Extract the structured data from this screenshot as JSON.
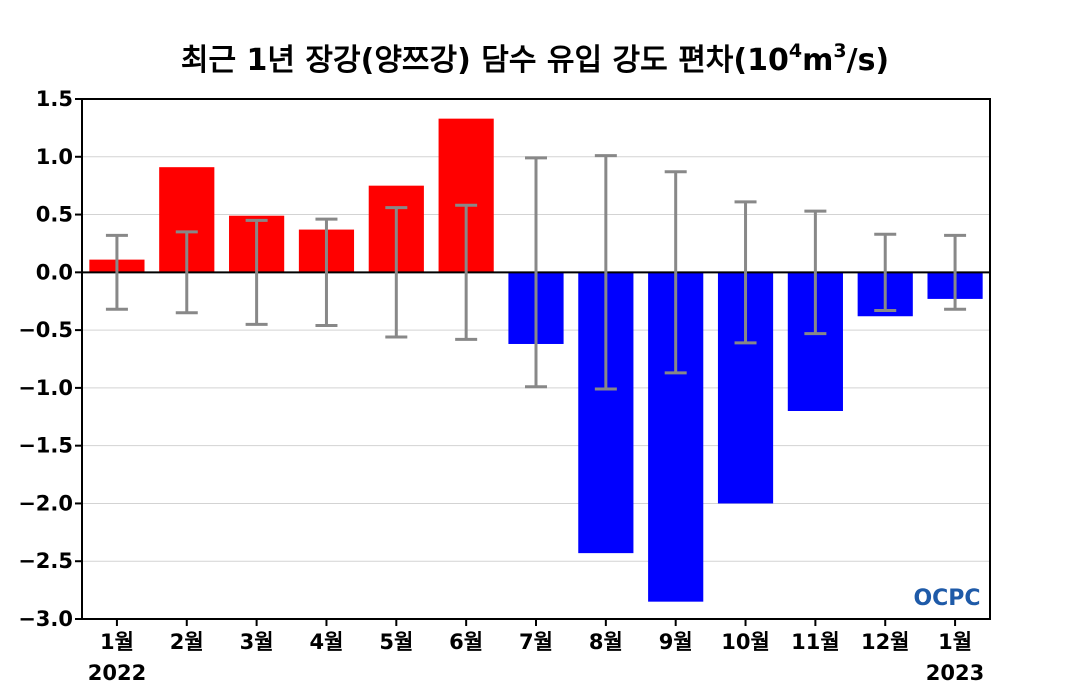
{
  "chart_data": {
    "type": "bar",
    "title": "최근 1년 장강(양쯔강) 담수 유입 강도 편차(10⁴m³/s)",
    "title_parts": {
      "main": "최근 1년 장강(양쯔강) 담수 유입 강도 편차(10",
      "exp1": "4",
      "mid": "m",
      "exp2": "3",
      "tail": "/s)"
    },
    "categories": [
      "1월",
      "2월",
      "3월",
      "4월",
      "5월",
      "6월",
      "7월",
      "8월",
      "9월",
      "10월",
      "11월",
      "12월",
      "1월"
    ],
    "year_labels": {
      "first": "2022",
      "last": "2023"
    },
    "series": [
      {
        "values": [
          0.11,
          0.91,
          0.49,
          0.37,
          0.75,
          1.33,
          -0.62,
          -2.43,
          -2.85,
          -2.0,
          -1.2,
          -0.38,
          -0.23
        ],
        "error": [
          0.32,
          0.35,
          0.45,
          0.46,
          0.56,
          0.58,
          0.99,
          1.01,
          0.87,
          0.61,
          0.53,
          0.33,
          0.32
        ]
      }
    ],
    "ylim": [
      -3.0,
      1.5
    ],
    "yticks": [
      1.5,
      1.0,
      0.5,
      0.0,
      -0.5,
      -1.0,
      -1.5,
      -2.0,
      -2.5,
      -3.0
    ],
    "ytick_labels": [
      "1.5",
      "1.0",
      "0.5",
      "0.0",
      "−0.5",
      "−1.0",
      "−1.5",
      "−2.0",
      "−2.5",
      "−3.0"
    ],
    "grid": true,
    "colors": {
      "positive": "#ff0000",
      "negative": "#0000ff",
      "error_bar": "#888888",
      "grid": "#d3d3d3",
      "zero_line": "#000000"
    },
    "logo": {
      "text": "OCPC",
      "color": "#1e5aa8"
    }
  }
}
